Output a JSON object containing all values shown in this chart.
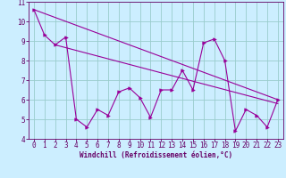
{
  "title": "",
  "xlabel": "Windchill (Refroidissement éolien,°C)",
  "ylabel": "",
  "bg_color": "#cceeff",
  "line_color": "#990099",
  "marker_color": "#990099",
  "grid_color": "#99cccc",
  "axis_color": "#660066",
  "tick_label_color": "#660066",
  "xlabel_color": "#660066",
  "xlim": [
    -0.5,
    23.5
  ],
  "ylim": [
    4,
    11
  ],
  "yticks": [
    4,
    5,
    6,
    7,
    8,
    9,
    10,
    11
  ],
  "xticks": [
    0,
    1,
    2,
    3,
    4,
    5,
    6,
    7,
    8,
    9,
    10,
    11,
    12,
    13,
    14,
    15,
    16,
    17,
    18,
    19,
    20,
    21,
    22,
    23
  ],
  "series1_x": [
    0,
    1,
    2,
    3,
    4,
    5,
    6,
    7,
    8,
    9,
    10,
    11,
    12,
    13,
    14,
    15,
    16,
    17,
    18,
    19,
    20,
    21,
    22,
    23
  ],
  "series1_y": [
    10.6,
    9.3,
    8.8,
    9.2,
    5.0,
    4.6,
    5.5,
    5.2,
    6.4,
    6.6,
    6.1,
    5.1,
    6.5,
    6.5,
    7.5,
    6.5,
    8.9,
    9.1,
    8.0,
    4.4,
    5.5,
    5.2,
    4.6,
    6.0
  ],
  "series2_x": [
    0,
    23
  ],
  "series2_y": [
    10.6,
    6.0
  ],
  "series3_x": [
    2,
    23
  ],
  "series3_y": [
    8.8,
    5.8
  ],
  "xlabel_fontsize": 5.5,
  "tick_fontsize": 5.5,
  "linewidth": 0.8,
  "markersize": 2.5
}
